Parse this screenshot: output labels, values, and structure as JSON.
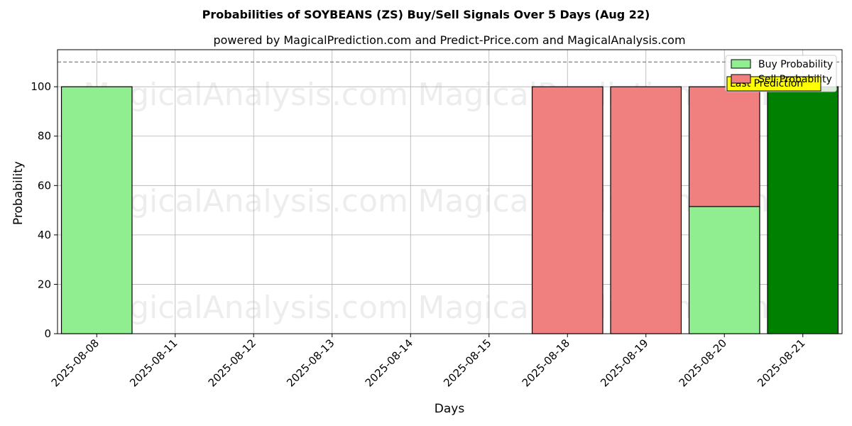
{
  "chart_data": {
    "type": "bar",
    "title": "Probabilities of SOYBEANS (ZS) Buy/Sell Signals Over 5 Days (Aug 22)",
    "subtitle": "powered by MagicalPrediction.com and Predict-Price.com and MagicalAnalysis.com",
    "xlabel": "Days",
    "ylabel": "Probability",
    "ylim": [
      0,
      115
    ],
    "yticks": [
      0,
      20,
      40,
      60,
      80,
      100
    ],
    "grid": true,
    "categories": [
      "2025-08-08",
      "2025-08-11",
      "2025-08-12",
      "2025-08-13",
      "2025-08-14",
      "2025-08-15",
      "2025-08-18",
      "2025-08-19",
      "2025-08-20",
      "2025-08-21"
    ],
    "series": [
      {
        "name": "Buy Probability",
        "color": "#90ee90",
        "values": [
          100,
          0,
          0,
          0,
          0,
          0,
          0,
          0,
          51.5,
          0
        ]
      },
      {
        "name": "Sell Probability",
        "color": "#f08080",
        "values": [
          0,
          0,
          0,
          0,
          0,
          0,
          100,
          100,
          48.5,
          0
        ]
      },
      {
        "name": "Last Prediction",
        "color": "#008000",
        "values": [
          0,
          0,
          0,
          0,
          0,
          0,
          0,
          0,
          0,
          100
        ]
      }
    ],
    "reference_line": {
      "y": 110,
      "style": "dashed",
      "color": "#808080"
    },
    "legend": {
      "placement": "top-right",
      "entries": [
        "Buy Probability",
        "Sell Probability"
      ],
      "hidden_label": "Last Prediction",
      "hidden_label_color": "#ffff00"
    },
    "watermarks": [
      "MagicalAnalysis.com",
      "MagicalPrediction.com"
    ]
  }
}
